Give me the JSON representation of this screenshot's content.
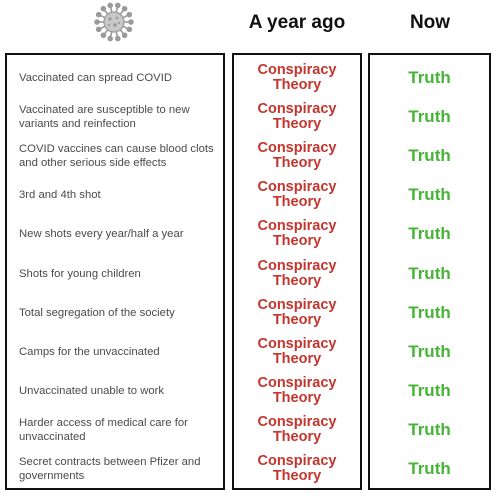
{
  "header": {
    "icon": "coronavirus-icon",
    "col_ago": "A year ago",
    "col_now": "Now"
  },
  "colors": {
    "conspiracy": "#c4352d",
    "truth": "#46b535",
    "label_text": "#4a4a4a",
    "border": "#111111"
  },
  "rows": [
    {
      "label": "Vaccinated can spread COVID",
      "ago": "Conspiracy Theory",
      "now": "Truth"
    },
    {
      "label": "Vaccinated are susceptible to new variants and reinfection",
      "ago": "Conspiracy Theory",
      "now": "Truth"
    },
    {
      "label": "COVID vaccines can cause blood clots and other serious side effects",
      "ago": "Conspiracy Theory",
      "now": "Truth"
    },
    {
      "label": "3rd and 4th shot",
      "ago": "Conspiracy Theory",
      "now": "Truth"
    },
    {
      "label": "New shots every year/half a year",
      "ago": "Conspiracy Theory",
      "now": "Truth"
    },
    {
      "label": "Shots for young children",
      "ago": "Conspiracy Theory",
      "now": "Truth"
    },
    {
      "label": "Total segregation of the society",
      "ago": "Conspiracy Theory",
      "now": "Truth"
    },
    {
      "label": "Camps for the unvaccinated",
      "ago": "Conspiracy Theory",
      "now": "Truth"
    },
    {
      "label": "Unvaccinated unable to work",
      "ago": "Conspiracy Theory",
      "now": "Truth"
    },
    {
      "label": "Harder access of medical care for unvaccinated",
      "ago": "Conspiracy Theory",
      "now": "Truth"
    },
    {
      "label": "Secret contracts between Pfizer and governments",
      "ago": "Conspiracy Theory",
      "now": "Truth"
    }
  ]
}
